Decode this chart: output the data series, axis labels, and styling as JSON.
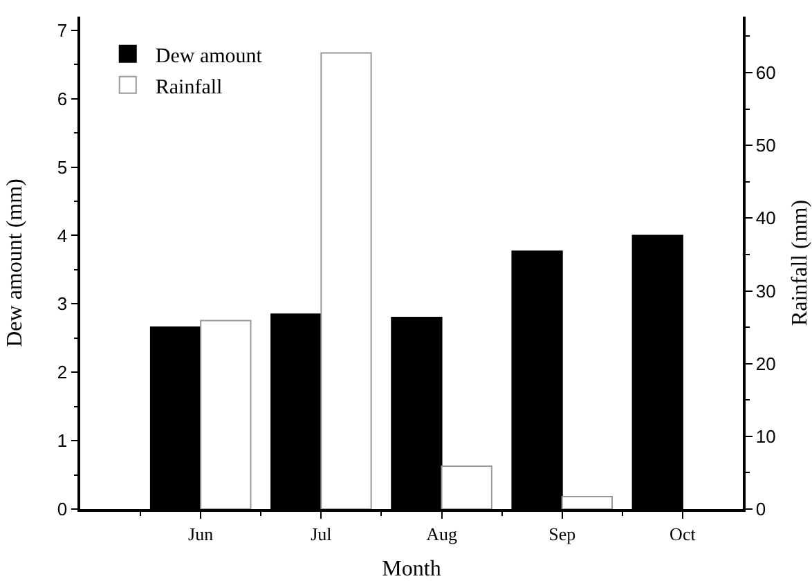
{
  "chart_data": {
    "type": "bar",
    "xlabel": "Month",
    "ylabel": "Dew amount (mm)",
    "y2label": "Rainfall (mm)",
    "categories": [
      "Jun",
      "Jul",
      "Aug",
      "Sep",
      "Oct"
    ],
    "series": [
      {
        "name": "Dew amount",
        "color": "#000000",
        "values": [
          2.66,
          2.85,
          2.8,
          3.77,
          4.0
        ]
      },
      {
        "name": "Rainfall",
        "color": "#ffffff",
        "axis": "y2",
        "values": [
          25.9,
          62.7,
          5.9,
          1.7,
          null
        ]
      }
    ],
    "ylim": [
      0,
      7.2
    ],
    "yticks": [
      0,
      1,
      2,
      3,
      4,
      5,
      6,
      7
    ],
    "y2lim": [
      0,
      67.7
    ],
    "y2ticks": [
      0,
      10,
      20,
      30,
      40,
      50,
      60
    ],
    "legend": "top left",
    "grid": false
  }
}
